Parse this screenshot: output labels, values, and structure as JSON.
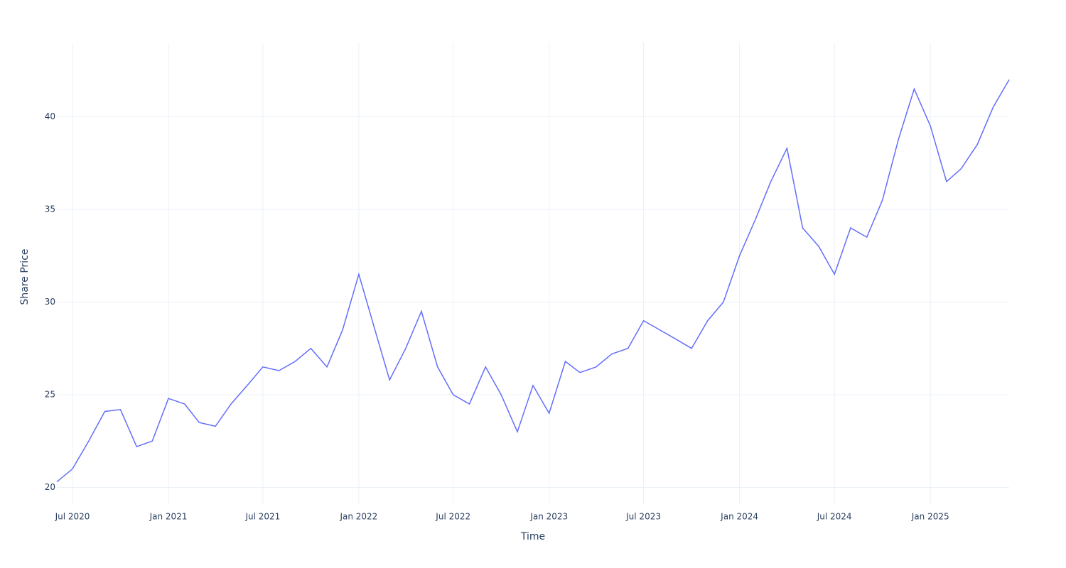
{
  "chart_data": {
    "type": "line",
    "x_label": "Time",
    "y_label": "Share Price",
    "x": [
      "2020-06",
      "2020-07",
      "2020-08",
      "2020-09",
      "2020-10",
      "2020-11",
      "2020-12",
      "2021-01",
      "2021-02",
      "2021-03",
      "2021-04",
      "2021-05",
      "2021-06",
      "2021-07",
      "2021-08",
      "2021-09",
      "2021-10",
      "2021-11",
      "2021-12",
      "2022-01",
      "2022-02",
      "2022-03",
      "2022-04",
      "2022-05",
      "2022-06",
      "2022-07",
      "2022-08",
      "2022-09",
      "2022-10",
      "2022-11",
      "2022-12",
      "2023-01",
      "2023-02",
      "2023-03",
      "2023-04",
      "2023-05",
      "2023-06",
      "2023-07",
      "2023-08",
      "2023-09",
      "2023-10",
      "2023-11",
      "2023-12",
      "2024-01",
      "2024-02",
      "2024-03",
      "2024-04",
      "2024-05",
      "2024-06",
      "2024-07",
      "2024-08",
      "2024-09",
      "2024-10",
      "2024-11",
      "2024-12",
      "2025-01",
      "2025-02",
      "2025-03",
      "2025-04",
      "2025-05",
      "2025-06"
    ],
    "series": [
      {
        "color": "#636efa",
        "values": [
          20.3,
          21.0,
          22.5,
          24.1,
          24.2,
          22.2,
          22.5,
          24.8,
          24.5,
          23.5,
          23.3,
          24.5,
          25.5,
          26.5,
          26.3,
          26.8,
          27.5,
          26.5,
          28.5,
          31.5,
          28.5,
          25.8,
          27.5,
          29.5,
          26.5,
          25.0,
          24.5,
          26.5,
          25.0,
          23.0,
          25.5,
          24.0,
          26.8,
          26.2,
          26.5,
          27.2,
          27.5,
          29.0,
          28.5,
          28.0,
          27.5,
          29.0,
          30.0,
          32.5,
          34.5,
          36.5,
          38.3,
          34.0,
          33.0,
          31.5,
          34.0,
          33.5,
          35.5,
          38.8,
          41.5,
          39.5,
          36.5,
          37.2,
          38.5,
          40.5,
          42.0
        ]
      }
    ],
    "xlim": [
      "2020-06",
      "2025-06"
    ],
    "xticks": [
      {
        "value": "2020-07",
        "label": "Jul 2020"
      },
      {
        "value": "2021-01",
        "label": "Jan 2021"
      },
      {
        "value": "2021-07",
        "label": "Jul 2021"
      },
      {
        "value": "2022-01",
        "label": "Jan 2022"
      },
      {
        "value": "2022-07",
        "label": "Jul 2022"
      },
      {
        "value": "2023-01",
        "label": "Jan 2023"
      },
      {
        "value": "2023-07",
        "label": "Jul 2023"
      },
      {
        "value": "2024-01",
        "label": "Jan 2024"
      },
      {
        "value": "2024-07",
        "label": "Jul 2024"
      },
      {
        "value": "2025-01",
        "label": "Jan 2025"
      }
    ],
    "ylim": [
      19.1,
      44
    ],
    "yticks": [
      20,
      25,
      30,
      35,
      40
    ],
    "grid": true
  }
}
